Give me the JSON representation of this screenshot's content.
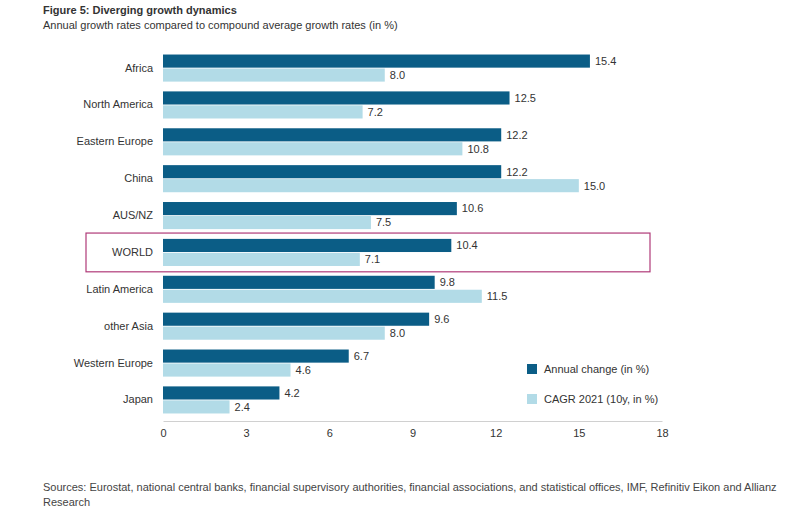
{
  "chart_data": {
    "type": "bar",
    "orientation": "horizontal",
    "title": "Figure 5: Diverging growth dynamics",
    "subtitle": "Annual growth rates compared to compound average growth rates (in %)",
    "source": "Sources: Eurostat, national central banks, financial supervisory authorities, financial associations, and statistical offices, IMF, Refinitiv Eikon and Allianz Research",
    "categories": [
      "Africa",
      "North America",
      "Eastern Europe",
      "China",
      "AUS/NZ",
      "WORLD",
      "Latin America",
      "other Asia",
      "Western Europe",
      "Japan"
    ],
    "series": [
      {
        "name": "Annual change (in %)",
        "color": "#0b5d86",
        "values": [
          15.4,
          12.5,
          12.2,
          12.2,
          10.6,
          10.4,
          9.8,
          9.6,
          6.7,
          4.2
        ]
      },
      {
        "name": "CAGR 2021 (10y, in %)",
        "color": "#b2dbe7",
        "values": [
          8.0,
          7.2,
          10.8,
          15.0,
          7.5,
          7.1,
          11.5,
          8.0,
          4.6,
          2.4
        ],
        "value_labels": [
          "8.0",
          "7.2",
          "10.8",
          "15.0",
          "7.5",
          "7.1",
          "11.5",
          "8.0",
          "4.6",
          "2.4"
        ]
      }
    ],
    "xlim": [
      0,
      18
    ],
    "xticks": [
      0,
      3,
      6,
      9,
      12,
      15,
      18
    ],
    "grid": false,
    "legend": "lower right",
    "data_labels": true
  }
}
